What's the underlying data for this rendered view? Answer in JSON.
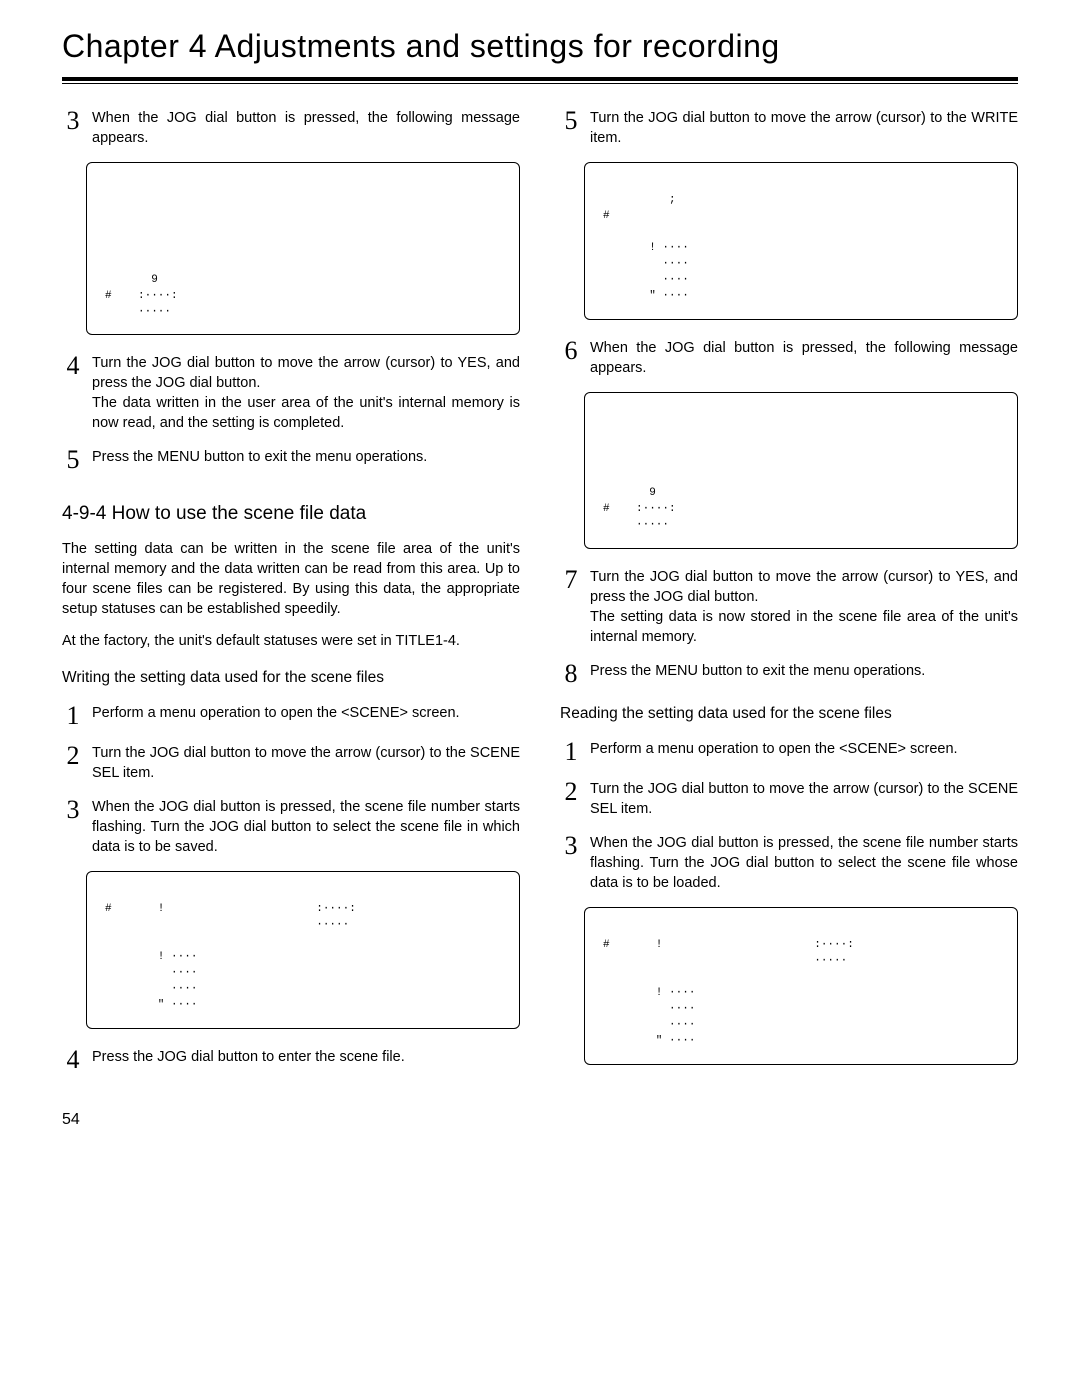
{
  "chapter_title": "Chapter 4  Adjustments and settings for recording",
  "page_number": "54",
  "left": {
    "step3": {
      "num": "3",
      "text": "When the JOG dial button is pressed, the following message appears."
    },
    "panel1": "\n\n\n\n\n\n       9\n#    :····:\n     ·····",
    "step4": {
      "num": "4",
      "text": "Turn the JOG dial button to move the arrow (cursor) to YES, and press the JOG dial button.",
      "sub": "The data written in the user area of the unit's internal memory is now read, and the setting is completed."
    },
    "step5": {
      "num": "5",
      "text": "Press the MENU button to exit the menu operations."
    },
    "section_head": "4-9-4 How to use the scene file data",
    "para1": "The setting data can be written in the scene file area of the unit's internal memory and the data written can be read from this area.  Up to four scene files can be registered.  By using this data, the appropriate setup statuses can be established speedily.",
    "para2": "At the factory, the unit's default statuses were set in TITLE1-4.",
    "sub_head": "Writing the setting data used for the scene files",
    "w_step1": {
      "num": "1",
      "text": "Perform a menu operation to open the <SCENE> screen."
    },
    "w_step2": {
      "num": "2",
      "text": "Turn the JOG dial button to move the arrow (cursor) to the SCENE SEL item."
    },
    "w_step3": {
      "num": "3",
      "text": "When the JOG dial button is pressed, the scene file number starts flashing.  Turn the JOG dial button to select the scene file in which data is to be saved."
    },
    "panel2": "\n#       !                       :····:\n                                ·····\n\n        ! ····\n          ····\n          ····\n        \" ····",
    "w_step4": {
      "num": "4",
      "text": "Press the JOG dial button to enter the scene file."
    }
  },
  "right": {
    "step5": {
      "num": "5",
      "text": "Turn the JOG dial button to move the arrow (cursor) to the WRITE item."
    },
    "panel1": "\n          ;\n#\n\n       ! ····\n         ····\n         ····\n       \" ····",
    "step6": {
      "num": "6",
      "text": "When the JOG dial button is pressed, the following message appears."
    },
    "panel2": "\n\n\n\n\n       9\n#    :····:\n     ·····",
    "step7": {
      "num": "7",
      "text": "Turn the JOG dial button to move the arrow (cursor) to YES, and press the JOG dial button.",
      "sub": "The setting data is now stored in the scene file area of the unit's internal memory."
    },
    "step8": {
      "num": "8",
      "text": "Press the MENU button to exit the menu operations."
    },
    "sub_head": "Reading the setting data used for the scene files",
    "r_step1": {
      "num": "1",
      "text": "Perform a menu operation to open the <SCENE> screen."
    },
    "r_step2": {
      "num": "2",
      "text": "Turn the JOG dial button to move the arrow (cursor) to the SCENE SEL item."
    },
    "r_step3": {
      "num": "3",
      "text": "When the JOG dial button is pressed, the scene file number starts flashing.  Turn the JOG dial button to select the scene file whose data is to be loaded."
    },
    "panel3": "\n#       !                       :····:\n                                ·····\n\n        ! ····\n          ····\n          ····\n        \" ····"
  }
}
